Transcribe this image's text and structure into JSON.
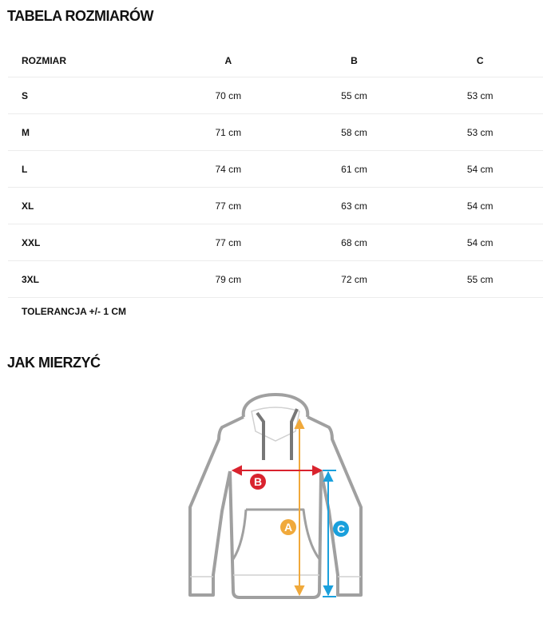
{
  "title": "TABELA ROZMIARÓW",
  "table": {
    "headers": [
      "ROZMIAR",
      "A",
      "B",
      "C"
    ],
    "rows": [
      [
        "S",
        "70 cm",
        "55 cm",
        "53 cm"
      ],
      [
        "M",
        "71 cm",
        "58 cm",
        "53 cm"
      ],
      [
        "L",
        "74 cm",
        "61 cm",
        "54 cm"
      ],
      [
        "XL",
        "77 cm",
        "63 cm",
        "54 cm"
      ],
      [
        "XXL",
        "77 cm",
        "68 cm",
        "54 cm"
      ],
      [
        "3XL",
        "79 cm",
        "72 cm",
        "55 cm"
      ]
    ]
  },
  "tolerance": "TOLERANCJA +/- 1 CM",
  "how_to_measure": "JAK MIERZYĆ",
  "diagram": {
    "labels": {
      "a": "A",
      "b": "B",
      "c": "C"
    },
    "colors": {
      "a": "#f0a93b",
      "b": "#d9232e",
      "c": "#1aa0dc",
      "outline": "#a0a0a0"
    }
  }
}
